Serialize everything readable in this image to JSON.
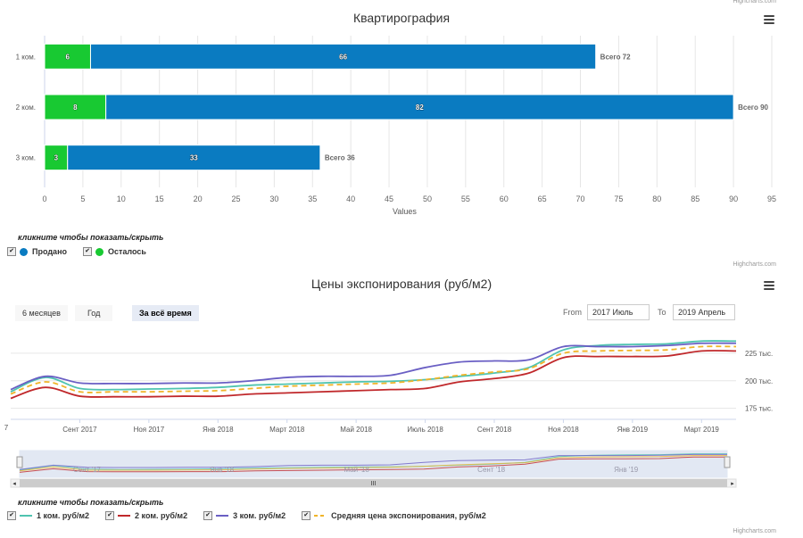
{
  "credits": "Highcharts.com",
  "chart1": {
    "title": "Квартирография",
    "xlabel": "Values",
    "legend_hint": "кликните чтобы показать/скрыть",
    "legend": [
      {
        "name": "Продано",
        "color": "#0a7bc1"
      },
      {
        "name": "Осталось",
        "color": "#18c932"
      }
    ]
  },
  "chart2": {
    "title": "Цены экспонирования (руб/м2)",
    "range_buttons": [
      "6 месяцев",
      "Год",
      "За всё время"
    ],
    "active_range": "За всё время",
    "from_label": "From",
    "from_value": "2017 Июль",
    "to_label": "To",
    "to_value": "2019 Апрель",
    "legend_hint": "кликните чтобы показать/скрыть",
    "legend": [
      {
        "name": "1 ком. руб/м2",
        "color": "#4fc4b0",
        "dash": false
      },
      {
        "name": "2 ком. руб/м2",
        "color": "#c0282b",
        "dash": false
      },
      {
        "name": "3 ком. руб/м2",
        "color": "#6a5fc4",
        "dash": false
      },
      {
        "name": "Средняя цена экспонирования, руб/м2",
        "color": "#f0b429",
        "dash": true
      }
    ],
    "navigator_labels": [
      "Сент '17",
      "Янв '18",
      "Май '18",
      "Сент '18",
      "Янв '19"
    ]
  },
  "chart_data": [
    {
      "type": "bar",
      "stacked": true,
      "categories": [
        "1 ком.",
        "2 ком.",
        "3 ком."
      ],
      "series": [
        {
          "name": "Осталось",
          "values": [
            6,
            8,
            3
          ],
          "color": "#18c932"
        },
        {
          "name": "Продано",
          "values": [
            66,
            82,
            33
          ],
          "color": "#0a7bc1"
        }
      ],
      "totals": [
        "Всего 72",
        "Всего 90",
        "Всего 36"
      ],
      "xlabel": "Values",
      "xlim": [
        0,
        95
      ],
      "xticks": [
        0,
        5,
        10,
        15,
        20,
        25,
        30,
        35,
        40,
        45,
        50,
        55,
        60,
        65,
        70,
        75,
        80,
        85,
        90,
        95
      ],
      "legend_placement": "bottom-left"
    },
    {
      "type": "line",
      "x_labels": [
        "Сент 2017",
        "Ноя 2017",
        "Янв 2018",
        "Март 2018",
        "Май 2018",
        "Июль 2018",
        "Сент 2018",
        "Ноя 2018",
        "Янв 2019",
        "Март 2019"
      ],
      "x": [
        "2017-07",
        "2017-08",
        "2017-09",
        "2017-10",
        "2017-11",
        "2017-12",
        "2018-01",
        "2018-02",
        "2018-03",
        "2018-04",
        "2018-05",
        "2018-06",
        "2018-07",
        "2018-08",
        "2018-09",
        "2018-10",
        "2018-11",
        "2018-12",
        "2019-01",
        "2019-02",
        "2019-03",
        "2019-04"
      ],
      "y_ticks": [
        "175 тыс.",
        "200 тыс.",
        "225 тыс."
      ],
      "ylim": [
        165000,
        250000
      ],
      "series": [
        {
          "name": "1 ком. руб/м2",
          "color": "#4fc4b0",
          "values": [
            190000,
            203000,
            193000,
            192000,
            192500,
            193000,
            194000,
            196000,
            197000,
            198000,
            199000,
            199500,
            201000,
            204000,
            207000,
            212000,
            228000,
            232000,
            233000,
            233500,
            236000,
            236000
          ]
        },
        {
          "name": "2 ком. руб/м2",
          "color": "#c0282b",
          "values": [
            184000,
            194000,
            186000,
            185500,
            185500,
            186000,
            186000,
            188000,
            189000,
            190000,
            191000,
            192000,
            193000,
            199000,
            202000,
            207000,
            221000,
            222000,
            222000,
            222500,
            227000,
            227000
          ]
        },
        {
          "name": "3 ком. руб/м2",
          "color": "#6a5fc4",
          "values": [
            192000,
            204000,
            198000,
            197500,
            197500,
            198000,
            198000,
            200000,
            203000,
            204000,
            204000,
            205000,
            212000,
            217000,
            218000,
            219000,
            231000,
            231000,
            231000,
            232000,
            234000,
            234000
          ]
        },
        {
          "name": "Средняя цена экспонирования, руб/м2",
          "color": "#f0b429",
          "dash": true,
          "values": [
            188000,
            199000,
            190000,
            190000,
            190000,
            190500,
            191000,
            193000,
            195000,
            196000,
            197000,
            198000,
            201000,
            205000,
            208000,
            211000,
            225000,
            227000,
            227500,
            228000,
            231000,
            231000
          ]
        }
      ],
      "legend_placement": "bottom-left"
    }
  ]
}
